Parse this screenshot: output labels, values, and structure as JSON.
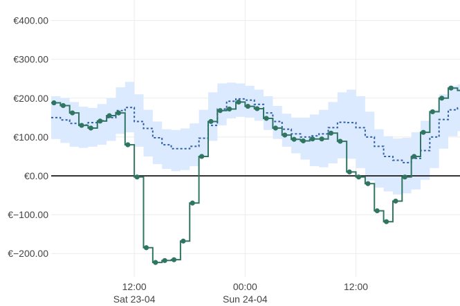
{
  "chart_data": {
    "type": "line",
    "title": "",
    "xlabel": "",
    "ylabel": "",
    "ylim": [
      -270,
      420
    ],
    "xlim": [
      "2022-04-23T03:00",
      "2022-04-25T01:00"
    ],
    "y_ticks": [
      {
        "value": 400,
        "label": "€400.00"
      },
      {
        "value": 300,
        "label": "€300.00"
      },
      {
        "value": 200,
        "label": "€200.00"
      },
      {
        "value": 100,
        "label": "€100.00"
      },
      {
        "value": 0,
        "label": "€0.00"
      },
      {
        "value": -100,
        "label": "€−100.00"
      },
      {
        "value": -200,
        "label": "€−200.00"
      }
    ],
    "x_ticks": [
      {
        "time": "2022-04-23T12:00",
        "label": "12:00",
        "sublabel": "Sat 23-04"
      },
      {
        "time": "2022-04-24T00:00",
        "label": "00:00",
        "sublabel": "Sun 24-04"
      },
      {
        "time": "2022-04-24T12:00",
        "label": "12:00",
        "sublabel": ""
      }
    ],
    "x_start": "2022-04-23T03:00",
    "step_hours": 1,
    "grid": true,
    "zero_line": true,
    "legend": "none",
    "colors": {
      "actual": "#2f7561",
      "forecast": "#2f5fa8",
      "band": "#dbeafe",
      "grid": "#ebebeb",
      "zero": "#333333",
      "label": "#444444"
    },
    "series": [
      {
        "style": "step-solid-markers",
        "values": [
          188,
          181,
          162,
          130,
          123,
          141,
          155,
          162,
          80,
          -3,
          -185,
          -223,
          -218,
          -216,
          -168,
          -70,
          50,
          140,
          168,
          172,
          190,
          179,
          173,
          148,
          123,
          105,
          94,
          90,
          95,
          95,
          110,
          89,
          10,
          -3,
          -20,
          -90,
          -118,
          -65,
          -3,
          50,
          112,
          165,
          200,
          226,
          220
        ]
      },
      {
        "style": "step-dotted",
        "values": [
          150,
          144,
          135,
          131,
          137,
          142,
          150,
          168,
          176,
          140,
          122,
          98,
          80,
          70,
          70,
          76,
          97,
          130,
          172,
          192,
          198,
          195,
          184,
          162,
          140,
          120,
          108,
          100,
          103,
          108,
          124,
          138,
          137,
          124,
          100,
          76,
          50,
          40,
          34,
          45,
          65,
          100,
          145,
          170,
          175,
          168,
          160
        ]
      },
      {
        "style": "band",
        "upper": [
          205,
          200,
          190,
          178,
          175,
          185,
          200,
          228,
          242,
          210,
          170,
          140,
          120,
          118,
          122,
          135,
          170,
          215,
          238,
          240,
          238,
          232,
          222,
          205,
          180,
          160,
          150,
          150,
          158,
          170,
          190,
          215,
          222,
          205,
          165,
          120,
          102,
          96,
          98,
          112,
          142,
          170,
          210,
          232,
          235,
          220,
          212
        ],
        "lower": [
          95,
          85,
          75,
          72,
          75,
          80,
          90,
          108,
          112,
          75,
          50,
          30,
          18,
          12,
          15,
          25,
          50,
          90,
          130,
          148,
          152,
          150,
          142,
          118,
          95,
          75,
          58,
          42,
          25,
          22,
          32,
          45,
          44,
          20,
          -12,
          -30,
          -40,
          -48,
          -45,
          -35,
          -10,
          20,
          70,
          102,
          115,
          108,
          100
        ]
      }
    ]
  }
}
